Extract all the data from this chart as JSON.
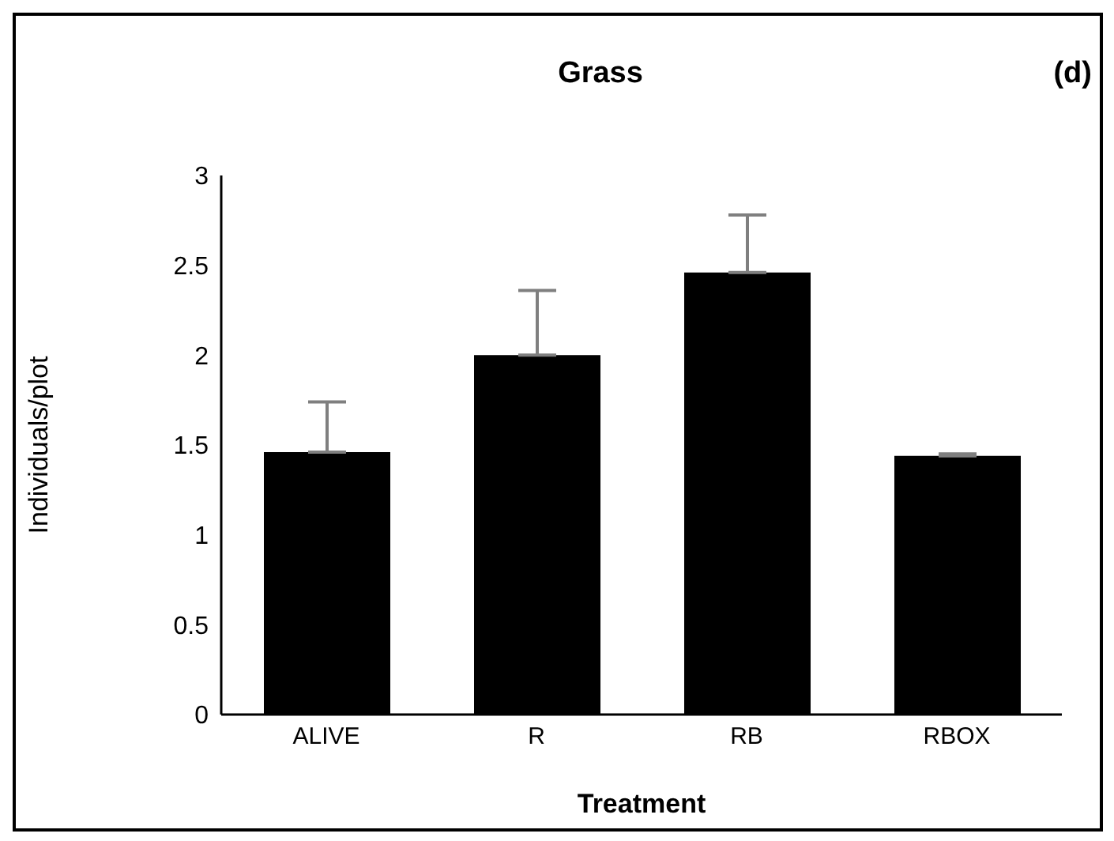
{
  "chart_data": {
    "type": "bar",
    "title": "Grass",
    "xlabel": "Treatment",
    "ylabel": "Individuals/plot",
    "annotations": [
      "(d)"
    ],
    "categories": [
      "ALIVE",
      "R",
      "RB",
      "RBOX"
    ],
    "values": [
      1.46,
      2.0,
      2.46,
      1.44
    ],
    "errors": [
      [
        1.46,
        1.74
      ],
      [
        2.0,
        2.36
      ],
      [
        2.46,
        2.78
      ],
      [
        1.44,
        1.45
      ]
    ],
    "color": "#000000",
    "ylim": [
      0,
      3
    ],
    "yticks": [
      0,
      0.5,
      1,
      1.5,
      2,
      2.5,
      3
    ],
    "grid": false,
    "legend": false
  }
}
